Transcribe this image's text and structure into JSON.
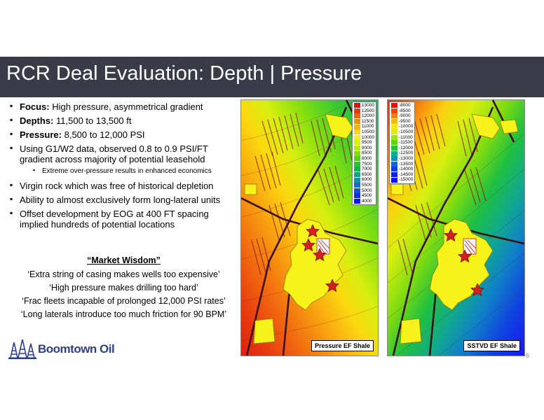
{
  "title": "RCR Deal Evaluation: Depth | Pressure",
  "bullets": {
    "focus_label": "Focus:",
    "focus_text": " High pressure, asymmetrical gradient",
    "depths_label": "Depths:",
    "depths_text": " 11,500 to 13,500 ft",
    "pressure_label": "Pressure:",
    "pressure_text": " 8,500 to 12,000 PSI",
    "g1w2_line1": "Using G1/W2 data, observed 0.8 to 0.9 PSI/FT",
    "g1w2_line2": "gradient across majority of potential leasehold",
    "sub_bullet": "Extreme over-pressure results in enhanced economics",
    "virgin_rock": "Virgin rock which was free of historical depletion",
    "long_lateral": "Ability to almost exclusively form long-lateral units",
    "offset_line1": "Offset development by EOG at 400 FT spacing",
    "offset_line2": "implied hundreds of potential locations"
  },
  "market_wisdom": {
    "title": "“Market Wisdom”",
    "quotes": [
      "‘Extra string of casing makes wells too expensive’",
      "‘High pressure makes drilling too hard’",
      "‘Frac fleets incapable of prolonged 12,000 PSI rates’",
      "‘Long laterals introduce too much friction for 90 BPM’"
    ]
  },
  "logo": {
    "text": "Boomtown Oil"
  },
  "map_left": {
    "label": "Pressure EF Shale",
    "legend": [
      "13000",
      "12500",
      "12000",
      "11500",
      "11000",
      "10500",
      "10000",
      "9500",
      "9000",
      "8500",
      "8000",
      "7500",
      "7000",
      "6500",
      "6000",
      "5500",
      "5000",
      "4500",
      "4000"
    ],
    "legend_colors": [
      "#e01010",
      "#e83a10",
      "#ef6010",
      "#f58a10",
      "#f9b010",
      "#fcd810",
      "#f5f010",
      "#d8f010",
      "#b0ea10",
      "#80e010",
      "#50d410",
      "#20c820",
      "#10b850",
      "#10a880",
      "#1090b0",
      "#1070d0",
      "#1050e0",
      "#1030e8",
      "#1010f0"
    ]
  },
  "map_right": {
    "label": "SSTVD EF Shale",
    "legend": [
      "-8000",
      "-8500",
      "-9000",
      "-9500",
      "-10000",
      "-10500",
      "-11000",
      "-11500",
      "-12000",
      "-12500",
      "-13000",
      "-13500",
      "-14000",
      "-14500",
      "-15000"
    ],
    "legend_colors": [
      "#e01010",
      "#ea4810",
      "#f28010",
      "#f8b810",
      "#fce810",
      "#d8f010",
      "#a0e410",
      "#60d410",
      "#20c430",
      "#10b080",
      "#1090c0",
      "#1068d8",
      "#1040e4",
      "#1020ec",
      "#1010f0"
    ]
  },
  "page_number": "6",
  "colors": {
    "title_bg": "#3a3b48",
    "logo": "#2c3f8c",
    "well_marker": "#d42020"
  }
}
